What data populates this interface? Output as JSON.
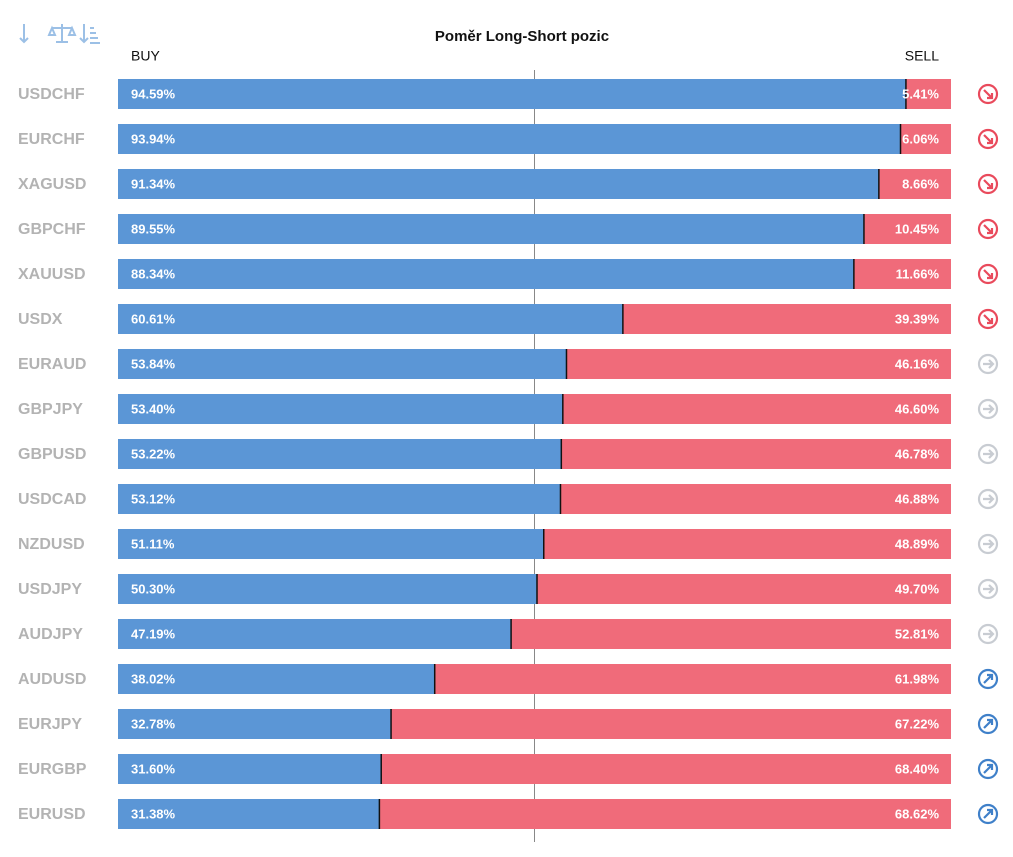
{
  "chart_data": {
    "type": "bar",
    "orientation": "horizontal",
    "stacked": true,
    "title": "Poměr Long-Short pozic",
    "categories": [
      "USDCHF",
      "EURCHF",
      "XAGUSD",
      "GBPCHF",
      "XAUUSD",
      "USDX",
      "EURAUD",
      "GBPJPY",
      "GBPUSD",
      "USDCAD",
      "NZDUSD",
      "USDJPY",
      "AUDJPY",
      "AUDUSD",
      "EURJPY",
      "EURGBP",
      "EURUSD"
    ],
    "series": [
      {
        "name": "BUY",
        "color": "#5b96d6",
        "values": [
          94.59,
          93.94,
          91.34,
          89.55,
          88.34,
          60.61,
          53.84,
          53.4,
          53.22,
          53.12,
          51.11,
          50.3,
          47.19,
          38.02,
          32.78,
          31.6,
          31.38
        ],
        "value_labels": [
          "94.59%",
          "93.94%",
          "91.34%",
          "89.55%",
          "88.34%",
          "60.61%",
          "53.84%",
          "53.40%",
          "53.22%",
          "53.12%",
          "51.11%",
          "50.30%",
          "47.19%",
          "38.02%",
          "32.78%",
          "31.60%",
          "31.38%"
        ]
      },
      {
        "name": "SELL",
        "color": "#f06b7a",
        "values": [
          5.41,
          6.06,
          8.66,
          10.45,
          11.66,
          39.39,
          46.16,
          46.6,
          46.78,
          46.88,
          48.89,
          49.7,
          52.81,
          61.98,
          67.22,
          68.4,
          68.62
        ],
        "value_labels": [
          "5.41%",
          "6.06%",
          "8.66%",
          "10.45%",
          "11.66%",
          "39.39%",
          "46.16%",
          "46.60%",
          "46.78%",
          "46.88%",
          "48.89%",
          "49.70%",
          "52.81%",
          "61.98%",
          "67.22%",
          "68.40%",
          "68.62%"
        ]
      }
    ],
    "signals": [
      "down",
      "down",
      "down",
      "down",
      "down",
      "down",
      "neutral",
      "neutral",
      "neutral",
      "neutral",
      "neutral",
      "neutral",
      "neutral",
      "up",
      "up",
      "up",
      "up"
    ],
    "xlim": [
      0,
      100
    ],
    "xticks": [
      50
    ],
    "grid": true
  }
}
